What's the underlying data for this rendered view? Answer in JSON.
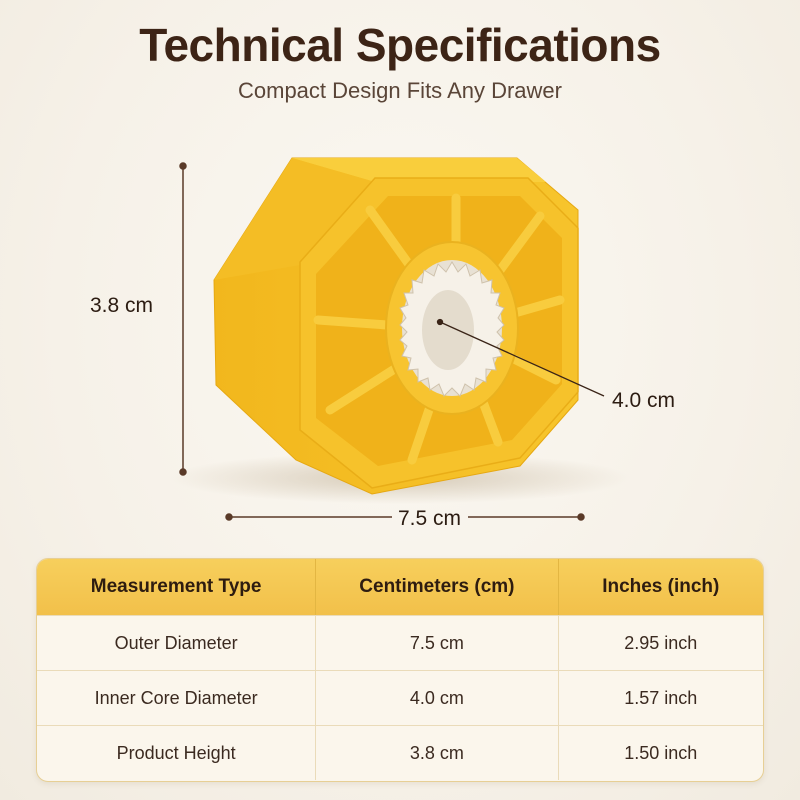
{
  "header": {
    "title": "Technical Specifications",
    "subtitle": "Compact Design Fits Any Drawer"
  },
  "dimensions": {
    "height": "3.8 cm",
    "inner": "4.0 cm",
    "width": "7.5 cm"
  },
  "colors": {
    "product_yellow": "#F5C02A",
    "header_yellow": "#F4C650",
    "title_brown": "#3D2416"
  },
  "table": {
    "headers": [
      "Measurement Type",
      "Centimeters (cm)",
      "Inches (inch)"
    ],
    "rows": [
      [
        "Outer Diameter",
        "7.5 cm",
        "2.95 inch"
      ],
      [
        "Inner Core Diameter",
        "4.0 cm",
        "1.57 inch"
      ],
      [
        "Product Height",
        "3.8 cm",
        "1.50 inch"
      ]
    ]
  }
}
